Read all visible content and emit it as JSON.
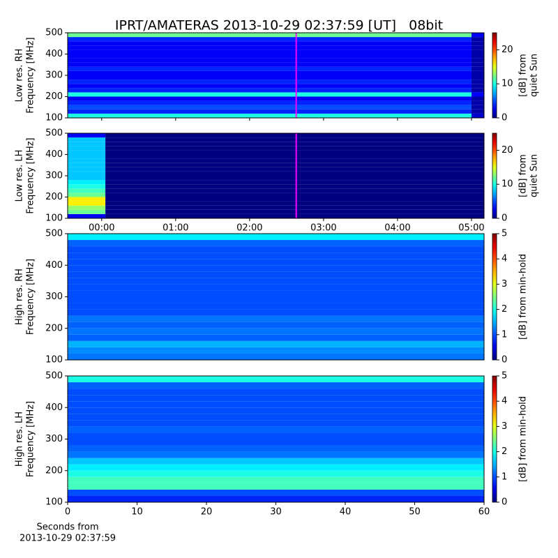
{
  "chart_data": [
    {
      "type": "heatmap",
      "title": "IPRT/AMATERAS 2013-10-29 02:37:59 [UT]   08bit",
      "ylabel": [
        "Low res. RH",
        "Frequency [MHz]"
      ],
      "ylim": [
        100,
        500
      ],
      "yticks": [
        100,
        200,
        300,
        400,
        500
      ],
      "xlim": [
        -0.46,
        5.17
      ],
      "colormap": "jet",
      "x_edges": [
        -0.46,
        5.0,
        5.17
      ],
      "y_edges": [
        100,
        120,
        140,
        160,
        180,
        200,
        220,
        240,
        260,
        280,
        300,
        320,
        340,
        360,
        380,
        400,
        420,
        440,
        460,
        480,
        500
      ],
      "z": [
        [
          10,
          2
        ],
        [
          4,
          1
        ],
        [
          5,
          1
        ],
        [
          4,
          1
        ],
        [
          3,
          1
        ],
        [
          10,
          3
        ],
        [
          4,
          1
        ],
        [
          3,
          1
        ],
        [
          4,
          1
        ],
        [
          3,
          1
        ],
        [
          3,
          1
        ],
        [
          4,
          1
        ],
        [
          3,
          1
        ],
        [
          3,
          1
        ],
        [
          3,
          1
        ],
        [
          3,
          1
        ],
        [
          3,
          1
        ],
        [
          3,
          1
        ],
        [
          4,
          1
        ],
        [
          12,
          3
        ]
      ],
      "cursor": {
        "value": 2.63,
        "color": "#ff00ff"
      },
      "colorbar": {
        "label": [
          "[dB] from",
          "quiet Sun"
        ],
        "lim": [
          0,
          25
        ],
        "ticks": [
          0,
          10,
          20
        ]
      }
    },
    {
      "type": "heatmap",
      "ylabel": [
        "Low res. LH",
        "Frequency [MHz]"
      ],
      "ylim": [
        100,
        500
      ],
      "yticks": [
        100,
        200,
        300,
        400,
        500
      ],
      "xlim": [
        -0.46,
        5.17
      ],
      "colormap": "jet",
      "xticks": [
        {
          "value": 0,
          "label": "00:00"
        },
        {
          "value": 1,
          "label": "01:00"
        },
        {
          "value": 2,
          "label": "02:00"
        },
        {
          "value": 3,
          "label": "03:00"
        },
        {
          "value": 4,
          "label": "04:00"
        },
        {
          "value": 5,
          "label": "05:00"
        }
      ],
      "x_edges": [
        -0.46,
        0.05,
        5.17
      ],
      "y_edges": [
        100,
        120,
        140,
        160,
        180,
        200,
        220,
        240,
        260,
        280,
        300,
        320,
        340,
        360,
        380,
        400,
        420,
        440,
        460,
        480,
        500
      ],
      "z": [
        [
          3,
          0
        ],
        [
          12,
          0
        ],
        [
          13,
          0
        ],
        [
          16,
          0
        ],
        [
          16,
          0
        ],
        [
          12,
          0
        ],
        [
          11,
          0
        ],
        [
          10,
          0
        ],
        [
          9,
          0
        ],
        [
          8,
          0
        ],
        [
          8,
          0
        ],
        [
          8,
          0
        ],
        [
          8,
          0
        ],
        [
          8,
          0
        ],
        [
          8,
          0
        ],
        [
          8,
          0
        ],
        [
          8,
          0
        ],
        [
          8,
          0
        ],
        [
          8,
          0
        ],
        [
          3,
          0
        ]
      ],
      "cursor": {
        "value": 2.63,
        "color": "#ff00ff"
      },
      "colorbar": {
        "label": [
          "[dB] from",
          "quiet Sun"
        ],
        "lim": [
          0,
          25
        ],
        "ticks": [
          0,
          10,
          20
        ]
      }
    },
    {
      "type": "heatmap",
      "ylabel": [
        "High res. RH",
        "Frequency [MHz]"
      ],
      "ylim": [
        100,
        500
      ],
      "yticks": [
        100,
        200,
        300,
        400,
        500
      ],
      "xlim": [
        0,
        60
      ],
      "colormap": "jet",
      "x_edges": [
        0,
        60
      ],
      "y_edges": [
        100,
        120,
        140,
        160,
        180,
        200,
        220,
        240,
        260,
        280,
        300,
        320,
        340,
        360,
        380,
        400,
        420,
        440,
        460,
        480,
        500
      ],
      "z": [
        [
          1.2
        ],
        [
          1.3
        ],
        [
          1.5
        ],
        [
          1.1
        ],
        [
          1.2
        ],
        [
          1.1
        ],
        [
          1.2
        ],
        [
          1.0
        ],
        [
          1.0
        ],
        [
          1.0
        ],
        [
          1.0
        ],
        [
          1.0
        ],
        [
          1.0
        ],
        [
          1.0
        ],
        [
          1.0
        ],
        [
          1.0
        ],
        [
          1.0
        ],
        [
          1.0
        ],
        [
          1.1
        ],
        [
          1.8
        ]
      ],
      "colorbar": {
        "label": [
          "[dB] from min-hold"
        ],
        "lim": [
          0,
          5
        ],
        "ticks": [
          0,
          1,
          2,
          3,
          4,
          5
        ]
      }
    },
    {
      "type": "heatmap",
      "ylabel": [
        "High res. LH",
        "Frequency [MHz]"
      ],
      "ylim": [
        100,
        500
      ],
      "yticks": [
        100,
        200,
        300,
        400,
        500
      ],
      "xlim": [
        0,
        60
      ],
      "xticks": [
        0,
        10,
        20,
        30,
        40,
        50,
        60
      ],
      "xlabel": [
        "Seconds from",
        "2013-10-29 02:37:59"
      ],
      "colormap": "jet",
      "x_edges": [
        0,
        60
      ],
      "y_edges": [
        100,
        120,
        140,
        160,
        180,
        200,
        220,
        240,
        260,
        280,
        300,
        320,
        340,
        360,
        380,
        400,
        420,
        440,
        460,
        480,
        500
      ],
      "z": [
        [
          0.8
        ],
        [
          1.0
        ],
        [
          2.2
        ],
        [
          2.2
        ],
        [
          2.0
        ],
        [
          1.8
        ],
        [
          1.6
        ],
        [
          1.2
        ],
        [
          1.1
        ],
        [
          1.0
        ],
        [
          1.0
        ],
        [
          1.1
        ],
        [
          1.0
        ],
        [
          1.0
        ],
        [
          1.0
        ],
        [
          1.0
        ],
        [
          1.0
        ],
        [
          1.0
        ],
        [
          1.1
        ],
        [
          2.0
        ]
      ],
      "colorbar": {
        "label": [
          "[dB] from min-hold"
        ],
        "lim": [
          0,
          5
        ],
        "ticks": [
          0,
          1,
          2,
          3,
          4,
          5
        ]
      }
    }
  ]
}
